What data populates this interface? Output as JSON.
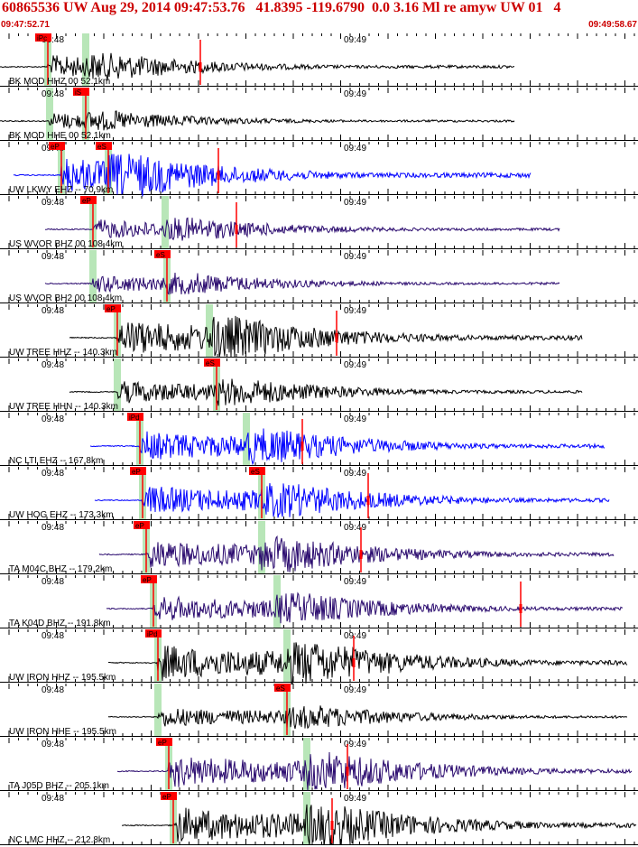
{
  "header": {
    "title": "60865536 UW Aug 29, 2014 09:47:53.76   41.8395 -119.6790  0.0 3.16 Ml re amyw UW 01   4",
    "start_time": "09:47:52.71",
    "end_time": "09:49:58.67"
  },
  "time_labels": [
    "09:48",
    "09:49"
  ],
  "colors": {
    "pick": "#ff0000",
    "pick_window": "#b8e6b8",
    "blue_trace": "#0000ff",
    "purple_trace": "#2a0a6e",
    "black_trace": "#000000",
    "title_red": "#cc0000"
  },
  "panels": [
    {
      "label": "BK MOD HHZ 00 52.1km",
      "color": "black",
      "picks": [
        "iPc"
      ]
    },
    {
      "label": "BK MOD HHE 00 52.1km",
      "color": "black",
      "picks": [
        "iS"
      ]
    },
    {
      "label": "UW LKWY EHZ -- 70.9km",
      "color": "blue",
      "picks": [
        "eP",
        "eS"
      ]
    },
    {
      "label": "US WVOR BHZ 00 108.4km",
      "color": "purple",
      "picks": [
        "eP"
      ]
    },
    {
      "label": "US WVOR BH2 00 108.4km",
      "color": "purple",
      "picks": [
        "eS"
      ]
    },
    {
      "label": "UW TREE HHZ -- 140.3km",
      "color": "black",
      "picks": [
        "eP"
      ]
    },
    {
      "label": "UW TREE HHN -- 140.3km",
      "color": "black",
      "picks": [
        "eS"
      ]
    },
    {
      "label": "NC LTI EHZ -- 167.8km",
      "color": "blue",
      "picks": [
        "iPd"
      ]
    },
    {
      "label": "UW HOG EHZ -- 173.3km",
      "color": "blue",
      "picks": [
        "eP",
        "eS"
      ]
    },
    {
      "label": "TA M04C BHZ -- 179.2km",
      "color": "purple",
      "picks": [
        "eP"
      ]
    },
    {
      "label": "TA K04D BHZ -- 191.8km",
      "color": "purple",
      "picks": [
        "eP"
      ]
    },
    {
      "label": "UW IRON HHZ -- 195.5km",
      "color": "black",
      "picks": [
        "iPd"
      ]
    },
    {
      "label": "UW IRON HHE -- 195.5km",
      "color": "black",
      "picks": [
        "eS"
      ]
    },
    {
      "label": "TA J05D BHZ -- 205.1km",
      "color": "purple",
      "picks": [
        "eP"
      ]
    },
    {
      "label": "NC LMC HHZ -- 212.8km",
      "color": "black",
      "picks": [
        "eP"
      ]
    }
  ]
}
